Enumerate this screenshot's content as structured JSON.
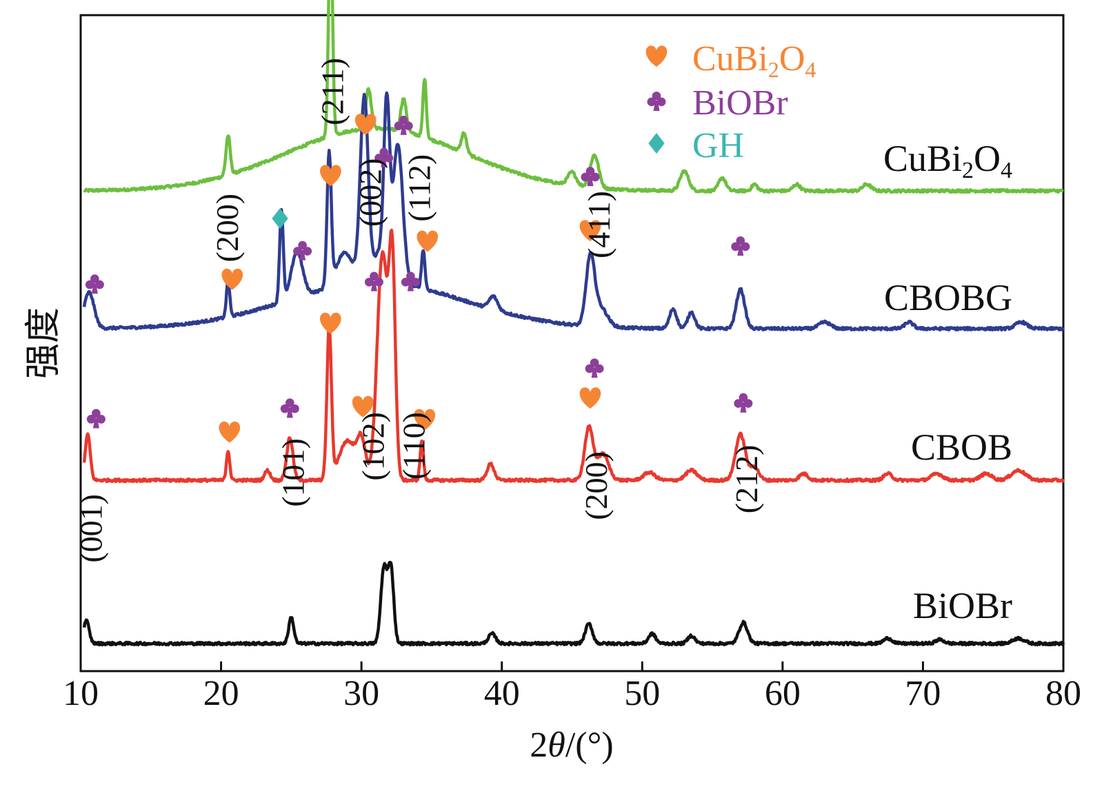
{
  "chart_data": {
    "type": "line",
    "title": "",
    "xlabel_prefix": "2",
    "xlabel_theta": "θ",
    "xlabel_suffix": "/(°)",
    "ylabel": "强度",
    "xlim": [
      10,
      80
    ],
    "xticks": [
      "10",
      "20",
      "30",
      "40",
      "50",
      "60",
      "70",
      "80"
    ],
    "legend": {
      "position": "top-center",
      "entries": [
        {
          "marker": "heart",
          "base": "CuBi",
          "sub1": "2",
          "mid": "O",
          "sub2": "4",
          "color": "#f58534"
        },
        {
          "marker": "club",
          "text": "BiOBr",
          "color": "#8d3f9a"
        },
        {
          "marker": "diamond",
          "text": "GH",
          "color": "#3bb6b0"
        }
      ]
    },
    "series": [
      {
        "name": "CuBi2O4",
        "name_base": "CuBi",
        "name_sub1": "2",
        "name_mid": "O",
        "name_sub2": "4",
        "color": "#6cbf3e",
        "baseline": 0.095,
        "peaks": [
          [
            20.5,
            0.06,
            0.15
          ],
          [
            27.8,
            0.33,
            0.14
          ],
          [
            30.5,
            0.06,
            0.2
          ],
          [
            33.0,
            0.05,
            0.2
          ],
          [
            34.5,
            0.09,
            0.12
          ],
          [
            37.3,
            0.03,
            0.18
          ],
          [
            45.0,
            0.02,
            0.3
          ],
          [
            46.6,
            0.05,
            0.3
          ],
          [
            53.0,
            0.03,
            0.3
          ],
          [
            55.7,
            0.02,
            0.25
          ],
          [
            58.0,
            0.01,
            0.2
          ],
          [
            61.0,
            0.01,
            0.25
          ],
          [
            66.0,
            0.01,
            0.3
          ]
        ],
        "hkl": [
          {
            "label": "(200)",
            "x": 20.5,
            "top": 0.272
          },
          {
            "label": "(211)",
            "x": 28.0,
            "top": 0.065
          },
          {
            "label": "(002)",
            "x": 30.7,
            "top": 0.218
          },
          {
            "label": "(112)",
            "x": 34.2,
            "top": 0.212
          },
          {
            "label": "(411)",
            "x": 47.0,
            "top": 0.268
          }
        ],
        "markers": []
      },
      {
        "name": "CBOBG",
        "color": "#2e3c8f",
        "baseline": 0.07,
        "peaks": [
          [
            10.6,
            0.055,
            0.35
          ],
          [
            20.5,
            0.055,
            0.12
          ],
          [
            24.3,
            0.14,
            0.13
          ],
          [
            25.4,
            0.07,
            0.4
          ],
          [
            27.7,
            0.2,
            0.15
          ],
          [
            28.8,
            0.05,
            0.6
          ],
          [
            30.2,
            0.28,
            0.28
          ],
          [
            31.4,
            0.05,
            0.5
          ],
          [
            31.8,
            0.24,
            0.2
          ],
          [
            32.6,
            0.21,
            0.35
          ],
          [
            34.4,
            0.06,
            0.12
          ],
          [
            39.4,
            0.02,
            0.3
          ],
          [
            46.3,
            0.1,
            0.3
          ],
          [
            47.0,
            0.03,
            0.5
          ],
          [
            52.2,
            0.03,
            0.25
          ],
          [
            53.5,
            0.025,
            0.25
          ],
          [
            57.0,
            0.06,
            0.3
          ],
          [
            63.0,
            0.01,
            0.4
          ],
          [
            69.0,
            0.01,
            0.3
          ],
          [
            77.0,
            0.01,
            0.4
          ]
        ],
        "hkl": [],
        "markers": [
          {
            "type": "club",
            "x": 11.0,
            "dy": 0.069
          },
          {
            "type": "heart",
            "x": 20.8,
            "dy": 0.075
          },
          {
            "type": "diamond",
            "x": 24.2,
            "dy": 0.168
          },
          {
            "type": "club",
            "x": 25.8,
            "dy": 0.12
          },
          {
            "type": "heart",
            "x": 27.8,
            "dy": 0.233
          },
          {
            "type": "heart",
            "x": 30.3,
            "dy": 0.311
          },
          {
            "type": "club",
            "x": 31.6,
            "dy": 0.262
          },
          {
            "type": "club",
            "x": 33.0,
            "dy": 0.311
          },
          {
            "type": "heart",
            "x": 34.7,
            "dy": 0.133
          },
          {
            "type": "heart",
            "x": 46.3,
            "dy": 0.149
          },
          {
            "type": "club",
            "x": 46.3,
            "dy": 0.233
          },
          {
            "type": "club",
            "x": 57.0,
            "dy": 0.127
          }
        ]
      },
      {
        "name": "CBOB",
        "color": "#e8392e",
        "baseline": 0.0,
        "peaks": [
          [
            10.5,
            0.07,
            0.18
          ],
          [
            20.5,
            0.045,
            0.12
          ],
          [
            23.3,
            0.015,
            0.2
          ],
          [
            24.9,
            0.065,
            0.22
          ],
          [
            27.7,
            0.23,
            0.16
          ],
          [
            29.0,
            0.06,
            0.6
          ],
          [
            30.0,
            0.055,
            0.3
          ],
          [
            31.5,
            0.345,
            0.38
          ],
          [
            32.2,
            0.31,
            0.22
          ],
          [
            34.3,
            0.06,
            0.12
          ],
          [
            39.2,
            0.025,
            0.25
          ],
          [
            46.2,
            0.08,
            0.3
          ],
          [
            47.2,
            0.04,
            0.4
          ],
          [
            50.5,
            0.012,
            0.4
          ],
          [
            53.5,
            0.015,
            0.4
          ],
          [
            57.0,
            0.07,
            0.35
          ],
          [
            58.0,
            0.02,
            0.3
          ],
          [
            61.5,
            0.01,
            0.3
          ],
          [
            67.5,
            0.01,
            0.3
          ],
          [
            71.0,
            0.01,
            0.4
          ],
          [
            74.5,
            0.01,
            0.4
          ],
          [
            76.8,
            0.015,
            0.5
          ]
        ],
        "hkl": [],
        "markers": [
          {
            "type": "club",
            "x": 11.1,
            "dy": 0.095
          },
          {
            "type": "heart",
            "x": 20.6,
            "dy": 0.073
          },
          {
            "type": "club",
            "x": 24.9,
            "dy": 0.111
          },
          {
            "type": "heart",
            "x": 27.8,
            "dy": 0.239
          },
          {
            "type": "heart",
            "x": 30.1,
            "dy": 0.112
          },
          {
            "type": "club",
            "x": 30.9,
            "dy": 0.304
          },
          {
            "type": "club",
            "x": 33.5,
            "dy": 0.304
          },
          {
            "type": "heart",
            "x": 34.5,
            "dy": 0.092
          },
          {
            "type": "heart",
            "x": 46.3,
            "dy": 0.125
          },
          {
            "type": "club",
            "x": 46.6,
            "dy": 0.172
          },
          {
            "type": "club",
            "x": 57.2,
            "dy": 0.119
          }
        ]
      },
      {
        "name": "BiOBr",
        "color": "#111111",
        "baseline": 0.0,
        "peaks": [
          [
            10.4,
            0.035,
            0.2
          ],
          [
            25.0,
            0.04,
            0.18
          ],
          [
            31.6,
            0.115,
            0.22
          ],
          [
            32.1,
            0.115,
            0.2
          ],
          [
            39.3,
            0.015,
            0.25
          ],
          [
            46.2,
            0.03,
            0.25
          ],
          [
            50.7,
            0.015,
            0.25
          ],
          [
            53.5,
            0.012,
            0.25
          ],
          [
            57.2,
            0.032,
            0.3
          ],
          [
            67.5,
            0.008,
            0.3
          ],
          [
            71.2,
            0.006,
            0.3
          ],
          [
            76.8,
            0.008,
            0.4
          ]
        ],
        "hkl": [
          {
            "label": "(001)",
            "x": 10.8,
            "top": 0.73
          },
          {
            "label": "(101)",
            "x": 25.2,
            "top": 0.645
          },
          {
            "label": "(102)",
            "x": 30.9,
            "top": 0.605
          },
          {
            "label": "(110)",
            "x": 33.8,
            "top": 0.605
          },
          {
            "label": "(200)",
            "x": 46.8,
            "top": 0.665
          },
          {
            "label": "(212)",
            "x": 57.5,
            "top": 0.655
          }
        ],
        "markers": []
      }
    ]
  }
}
